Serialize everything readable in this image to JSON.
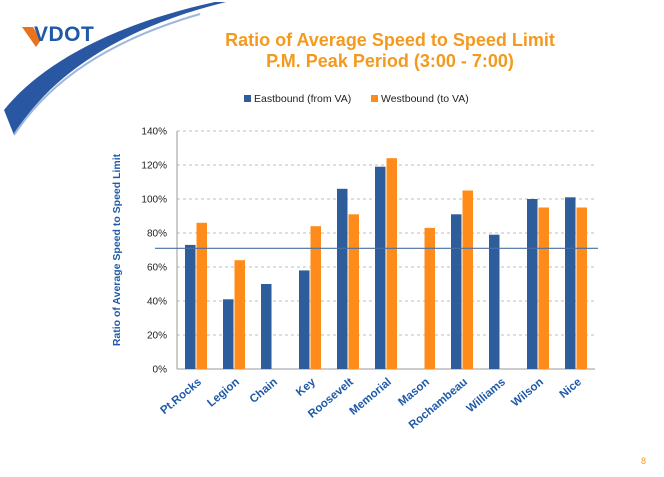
{
  "slide": {
    "logo_text": "VDOT",
    "page_number": "8"
  },
  "colors": {
    "eastbound": "#2E5D9B",
    "westbound": "#FF8C1A",
    "title": "#F39A1E",
    "axis_label": "#1F5AA8",
    "logo": "#1F5AA8",
    "reference_line": "#4A6FA5",
    "grid": "#BDBDBD"
  },
  "chart_data": {
    "type": "bar",
    "title": "Ratio of Average Speed to Speed Limit",
    "subtitle": "P.M. Peak Period (3:00 - 7:00)",
    "xlabel": "",
    "ylabel": "Ratio of Average Speed to Speed Limit",
    "ylim": [
      0,
      140
    ],
    "yticks": [
      0,
      20,
      40,
      60,
      80,
      100,
      120,
      140
    ],
    "ytick_labels": [
      "0%",
      "20%",
      "40%",
      "60%",
      "80%",
      "100%",
      "120%",
      "140%"
    ],
    "grid": true,
    "legend_position": "top",
    "reference_line": 71,
    "categories": [
      "Pt.Rocks",
      "Legion",
      "Chain",
      "Key",
      "Roosevelt",
      "Memorial",
      "Mason",
      "Rochambeau",
      "Williams",
      "Wilson",
      "Nice"
    ],
    "series": [
      {
        "name": "Eastbound (from VA)",
        "values": [
          73,
          41,
          50,
          58,
          106,
          119,
          null,
          91,
          79,
          100,
          101
        ]
      },
      {
        "name": "Westbound (to VA)",
        "values": [
          86,
          64,
          null,
          84,
          91,
          124,
          83,
          105,
          null,
          95,
          95
        ]
      }
    ]
  }
}
